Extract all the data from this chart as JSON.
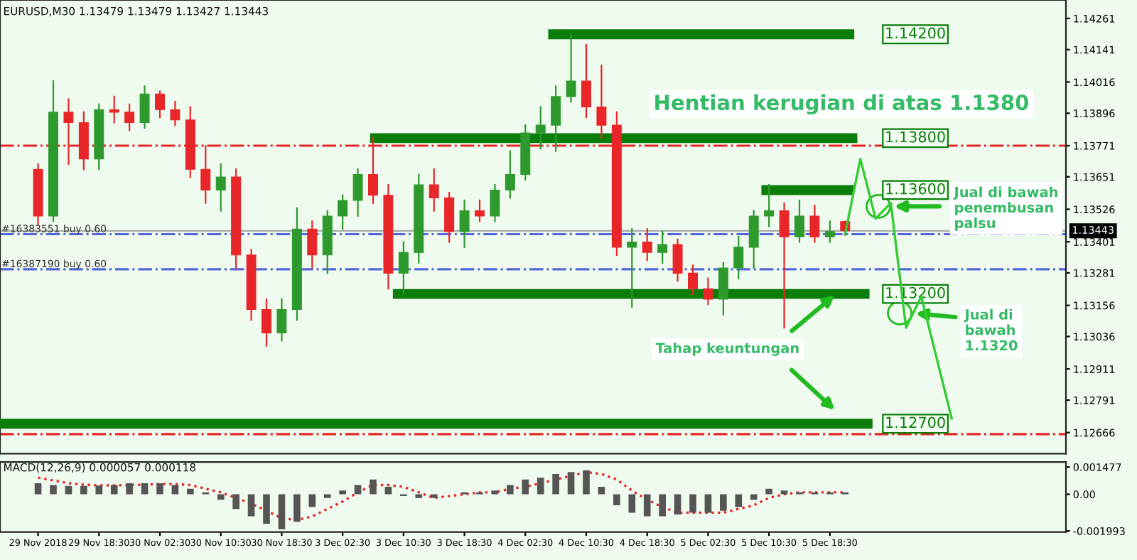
{
  "chart_data": [
    {
      "type": "candlestick",
      "title": "EURUSD,M30 1.13479 1.13479 1.13427 1.13443",
      "categories": [
        null,
        null,
        null,
        null,
        null,
        null,
        null,
        null,
        null,
        null,
        null,
        null,
        null,
        null,
        null,
        null,
        null,
        null,
        null,
        null,
        null,
        null,
        null,
        null,
        null,
        null,
        null,
        null,
        null,
        null,
        null,
        null,
        null,
        null,
        null,
        null,
        null,
        null,
        null,
        null,
        null,
        null,
        null,
        null,
        null,
        null,
        null,
        null,
        null,
        null,
        null,
        null,
        null,
        null,
        null,
        null,
        null,
        null,
        null,
        null,
        null,
        null,
        null,
        null,
        null,
        null,
        null,
        null,
        null,
        null
      ],
      "ohlc": [
        null,
        null,
        [
          1.1368,
          1.137,
          1.1347,
          1.135
        ],
        [
          1.135,
          1.1402,
          1.1348,
          1.139
        ],
        [
          1.139,
          1.1395,
          1.137,
          1.1386
        ],
        [
          1.1386,
          1.139,
          1.1368,
          1.1372
        ],
        [
          1.1372,
          1.1393,
          1.1368,
          1.1391
        ],
        [
          1.1391,
          1.1396,
          1.1386,
          1.139
        ],
        [
          1.139,
          1.1393,
          1.1383,
          1.1386
        ],
        [
          1.1386,
          1.14,
          1.1384,
          1.1397
        ],
        [
          1.1397,
          1.1398,
          1.1388,
          1.1391
        ],
        [
          1.1391,
          1.1394,
          1.1385,
          1.1387
        ],
        [
          1.1387,
          1.1392,
          1.1365,
          1.1368
        ],
        [
          1.1368,
          1.1377,
          1.1355,
          1.136
        ],
        [
          1.136,
          1.137,
          1.1352,
          1.1365
        ],
        [
          1.1365,
          1.1368,
          1.133,
          1.1335
        ],
        [
          1.1335,
          1.1337,
          1.131,
          1.1314
        ],
        [
          1.1314,
          1.1318,
          1.13,
          1.1305
        ],
        [
          1.1305,
          1.1318,
          1.1302,
          1.1314
        ],
        [
          1.1314,
          1.1353,
          1.131,
          1.1345
        ],
        [
          1.1345,
          1.1348,
          1.133,
          1.1335
        ],
        [
          1.1335,
          1.1352,
          1.1328,
          1.135
        ],
        [
          1.135,
          1.1358,
          1.1345,
          1.1356
        ],
        [
          1.1356,
          1.1368,
          1.135,
          1.1366
        ],
        [
          1.1366,
          1.138,
          1.1355,
          1.1358
        ],
        [
          1.1358,
          1.1362,
          1.1322,
          1.1328
        ],
        [
          1.1328,
          1.134,
          1.132,
          1.1336
        ],
        [
          1.1336,
          1.1366,
          1.1332,
          1.1362
        ],
        [
          1.1362,
          1.1368,
          1.1352,
          1.1357
        ],
        [
          1.1357,
          1.1359,
          1.134,
          1.1344
        ],
        [
          1.1344,
          1.1356,
          1.1338,
          1.1352
        ],
        [
          1.1352,
          1.1356,
          1.1348,
          1.135
        ],
        [
          1.135,
          1.1362,
          1.1348,
          1.136
        ],
        [
          1.136,
          1.1375,
          1.1357,
          1.1366
        ],
        [
          1.1366,
          1.1385,
          1.1364,
          1.1382
        ],
        [
          1.1382,
          1.1392,
          1.1376,
          1.1385
        ],
        [
          1.1385,
          1.14,
          1.1375,
          1.1396
        ],
        [
          1.1396,
          1.142,
          1.1394,
          1.1402
        ],
        [
          1.1402,
          1.1416,
          1.1388,
          1.1392
        ],
        [
          1.1392,
          1.1408,
          1.138,
          1.1385
        ],
        [
          1.1385,
          1.139,
          1.1335,
          1.1338
        ],
        [
          1.1338,
          1.1345,
          1.1315,
          1.134
        ],
        [
          1.134,
          1.1345,
          1.1333,
          1.1336
        ],
        [
          1.1336,
          1.1344,
          1.1332,
          1.1339
        ],
        [
          1.1339,
          1.1341,
          1.1325,
          1.1328
        ],
        [
          1.1328,
          1.1331,
          1.132,
          1.1322
        ],
        [
          1.1322,
          1.1326,
          1.1316,
          1.1318
        ],
        [
          1.1318,
          1.1332,
          1.1312,
          1.133
        ],
        [
          1.133,
          1.1342,
          1.1326,
          1.1338
        ],
        [
          1.1338,
          1.1352,
          1.133,
          1.135
        ],
        [
          1.135,
          1.1362,
          1.1346,
          1.1352
        ],
        [
          1.1352,
          1.1355,
          1.1307,
          1.1342
        ],
        [
          1.1342,
          1.1356,
          1.134,
          1.135
        ],
        [
          1.135,
          1.1354,
          1.134,
          1.1342
        ],
        [
          1.1342,
          1.1348,
          1.134,
          1.1344
        ],
        [
          1.13479,
          1.13479,
          1.13427,
          1.13443
        ],
        null,
        null,
        null,
        null,
        null,
        null,
        null,
        null,
        null,
        null,
        null,
        null,
        null,
        null
      ],
      "colors": [
        null,
        null,
        "#e8262a",
        "#2e9a2e",
        "#e8262a",
        "#e8262a",
        "#2e9a2e",
        "#e8262a",
        "#e8262a",
        "#2e9a2e",
        "#e8262a",
        "#e8262a",
        "#e8262a",
        "#e8262a",
        "#2e9a2e",
        "#e8262a",
        "#e8262a",
        "#e8262a",
        "#2e9a2e",
        "#2e9a2e",
        "#e8262a",
        "#2e9a2e",
        "#2e9a2e",
        "#2e9a2e",
        "#e8262a",
        "#e8262a",
        "#2e9a2e",
        "#2e9a2e",
        "#e8262a",
        "#e8262a",
        "#2e9a2e",
        "#e8262a",
        "#2e9a2e",
        "#2e9a2e",
        "#2e9a2e",
        "#2e9a2e",
        "#2e9a2e",
        "#2e9a2e",
        "#e8262a",
        "#e8262a",
        "#e8262a",
        "#2e9a2e",
        "#e8262a",
        "#2e9a2e",
        "#e8262a",
        "#e8262a",
        "#e8262a",
        "#2e9a2e",
        "#2e9a2e",
        "#2e9a2e",
        "#2e9a2e",
        "#e8262a",
        "#2e9a2e",
        "#e8262a",
        "#2e9a2e",
        "#e8262a",
        null,
        null,
        null,
        null,
        null,
        null,
        null,
        null,
        null,
        null,
        null,
        null,
        null,
        null
      ],
      "series": [
        {
          "type": "line",
          "color": "#33cc33",
          "values": [
            null,
            null,
            null,
            null,
            null,
            null,
            null,
            null,
            null,
            null,
            null,
            null,
            null,
            null,
            null,
            null,
            null,
            null,
            null,
            null,
            null,
            null,
            null,
            null,
            null,
            null,
            null,
            null,
            null,
            null,
            null,
            null,
            null,
            null,
            null,
            null,
            null,
            null,
            null,
            null,
            null,
            null,
            null,
            null,
            null,
            null,
            null,
            null,
            null,
            null,
            null,
            null,
            null,
            null,
            null,
            1.1343,
            1.1372,
            1.1349,
            1.1355,
            1.1307,
            1.1319,
            null,
            1.1272,
            null,
            null,
            null,
            null,
            null,
            null,
            null
          ]
        }
      ],
      "ylim": [
        1.12585,
        1.14332
      ],
      "yticks": [
        1.14261,
        1.14141,
        1.14016,
        1.13896,
        1.13771,
        1.13651,
        1.13526,
        1.13401,
        1.13281,
        1.13156,
        1.13036,
        1.12911,
        1.12791,
        1.12666
      ],
      "tick_labels": "y",
      "grid": false,
      "ref_lines": [
        {
          "axis": "y",
          "value": 1.142,
          "label": "1.14200",
          "color": "#0a7d0a",
          "line_style": "solid"
        },
        {
          "axis": "y",
          "value": 1.138,
          "label": "1.13800",
          "color": "#0a7d0a",
          "line_style": "solid"
        },
        {
          "axis": "y",
          "value": 1.136,
          "label": "1.13600",
          "color": "#0a7d0a",
          "line_style": "solid"
        },
        {
          "axis": "y",
          "value": 1.132,
          "label": "1.13200",
          "color": "#0a7d0a",
          "line_style": "solid"
        },
        {
          "axis": "y",
          "value": 1.127,
          "label": "1.12700",
          "color": "#0a7d0a",
          "line_style": "solid"
        },
        {
          "axis": "y",
          "value": 1.13771,
          "color": "#e8262a",
          "line_style": "dashed"
        },
        {
          "axis": "y",
          "value": 1.1343,
          "label": "#16383551 buy 0.60",
          "color": "#5566dd",
          "line_style": "dashed"
        },
        {
          "axis": "y",
          "value": 1.13295,
          "label": "#16387190 buy 0.60",
          "color": "#5566dd",
          "line_style": "dashed"
        },
        {
          "axis": "y",
          "value": 1.1266,
          "color": "#e8262a",
          "line_style": "dashed"
        },
        {
          "axis": "y",
          "value": 1.13443,
          "label": "1.13443",
          "color": "#aaaaaa",
          "line_style": "solid"
        }
      ],
      "annotations": [
        "Hentian kerugian di atas 1.1380",
        "Jual di bawah\npenembusan\npalsu",
        "Jual di\nbawah\n1.1320",
        "Tahap keuntungan"
      ]
    },
    {
      "type": "bar",
      "title": "MACD(12,26,9) 0.000057 0.000118",
      "categories": [
        null,
        null,
        "29 Nov 2018",
        null,
        null,
        null,
        "29 Nov 18:30",
        null,
        null,
        null,
        "30 Nov 02:30",
        null,
        null,
        null,
        "30 Nov 10:30",
        null,
        null,
        null,
        "30 Nov 18:30",
        null,
        null,
        null,
        "3 Dec 02:30",
        null,
        null,
        null,
        "3 Dec 10:30",
        null,
        null,
        null,
        "3 Dec 18:30",
        null,
        null,
        null,
        "4 Dec 02:30",
        null,
        null,
        null,
        "4 Dec 10:30",
        null,
        null,
        null,
        "4 Dec 18:30",
        null,
        null,
        null,
        "5 Dec 02:30",
        null,
        null,
        null,
        "5 Dec 10:30",
        null,
        null,
        null,
        "5 Dec 18:30",
        null,
        null,
        null,
        null,
        null,
        null,
        null,
        null,
        null,
        null,
        null,
        null,
        null,
        null,
        null
      ],
      "series": [
        {
          "type": "bar",
          "color": "#555555",
          "values": [
            null,
            null,
            0.0006,
            0.0005,
            0.00045,
            0.00045,
            0.00047,
            0.0005,
            0.0006,
            0.0006,
            0.0006,
            0.0005,
            0.0003,
            0.0001,
            -0.0003,
            -0.0008,
            -0.0012,
            -0.0016,
            -0.0019,
            -0.0015,
            -0.0007,
            -0.0002,
            0.0002,
            0.0005,
            0.0008,
            0.0004,
            -0.0001,
            -0.0002,
            -0.0002,
            0,
            0.0001,
            0.0001,
            0.0002,
            0.0005,
            0.0008,
            0.0009,
            0.0011,
            0.0012,
            0.0013,
            0.0004,
            -0.0006,
            -0.001,
            -0.0012,
            -0.0012,
            -0.0011,
            -0.001,
            -0.001,
            -0.0009,
            -0.0007,
            -0.0003,
            0.0003,
            0.0002,
            0.0001,
            0.0001,
            0.0001,
            0.0001,
            null,
            null,
            null,
            null,
            null,
            null,
            null,
            null,
            null,
            null,
            null,
            null,
            null,
            null
          ]
        },
        {
          "type": "line",
          "color": "#e8262a",
          "line_style": "dotted",
          "values": [
            null,
            null,
            0.0009,
            0.00075,
            0.0006,
            0.00052,
            0.00048,
            0.00048,
            0.0005,
            0.00052,
            0.00055,
            0.00055,
            0.0005,
            0.0003,
            0.0001,
            -0.0002,
            -0.0005,
            -0.0009,
            -0.0013,
            -0.0014,
            -0.0012,
            -0.0008,
            -0.0004,
            0.0001,
            0.0005,
            0.0005,
            0.0004,
            0.0001,
            -0.0002,
            -0.0001,
            0,
            0.0001,
            0.0001,
            0.0003,
            0.0004,
            0.0006,
            0.0008,
            0.001,
            0.0012,
            0.0011,
            0.0008,
            0.0002,
            -0.0003,
            -0.0007,
            -0.001,
            -0.001,
            -0.001,
            -0.001,
            -0.0008,
            -0.0006,
            -0.0002,
            0,
            0.0001,
            0.0001,
            0.0001,
            0.0001,
            null,
            null,
            null,
            null,
            null,
            null,
            null,
            null,
            null,
            null,
            null,
            null,
            null,
            null
          ]
        }
      ],
      "ylim": [
        -0.00205,
        0.00175
      ],
      "yticks": [
        0.001477,
        {
          "value": 0,
          "label": "0.00"
        },
        -0.001993
      ],
      "grid": false
    }
  ]
}
